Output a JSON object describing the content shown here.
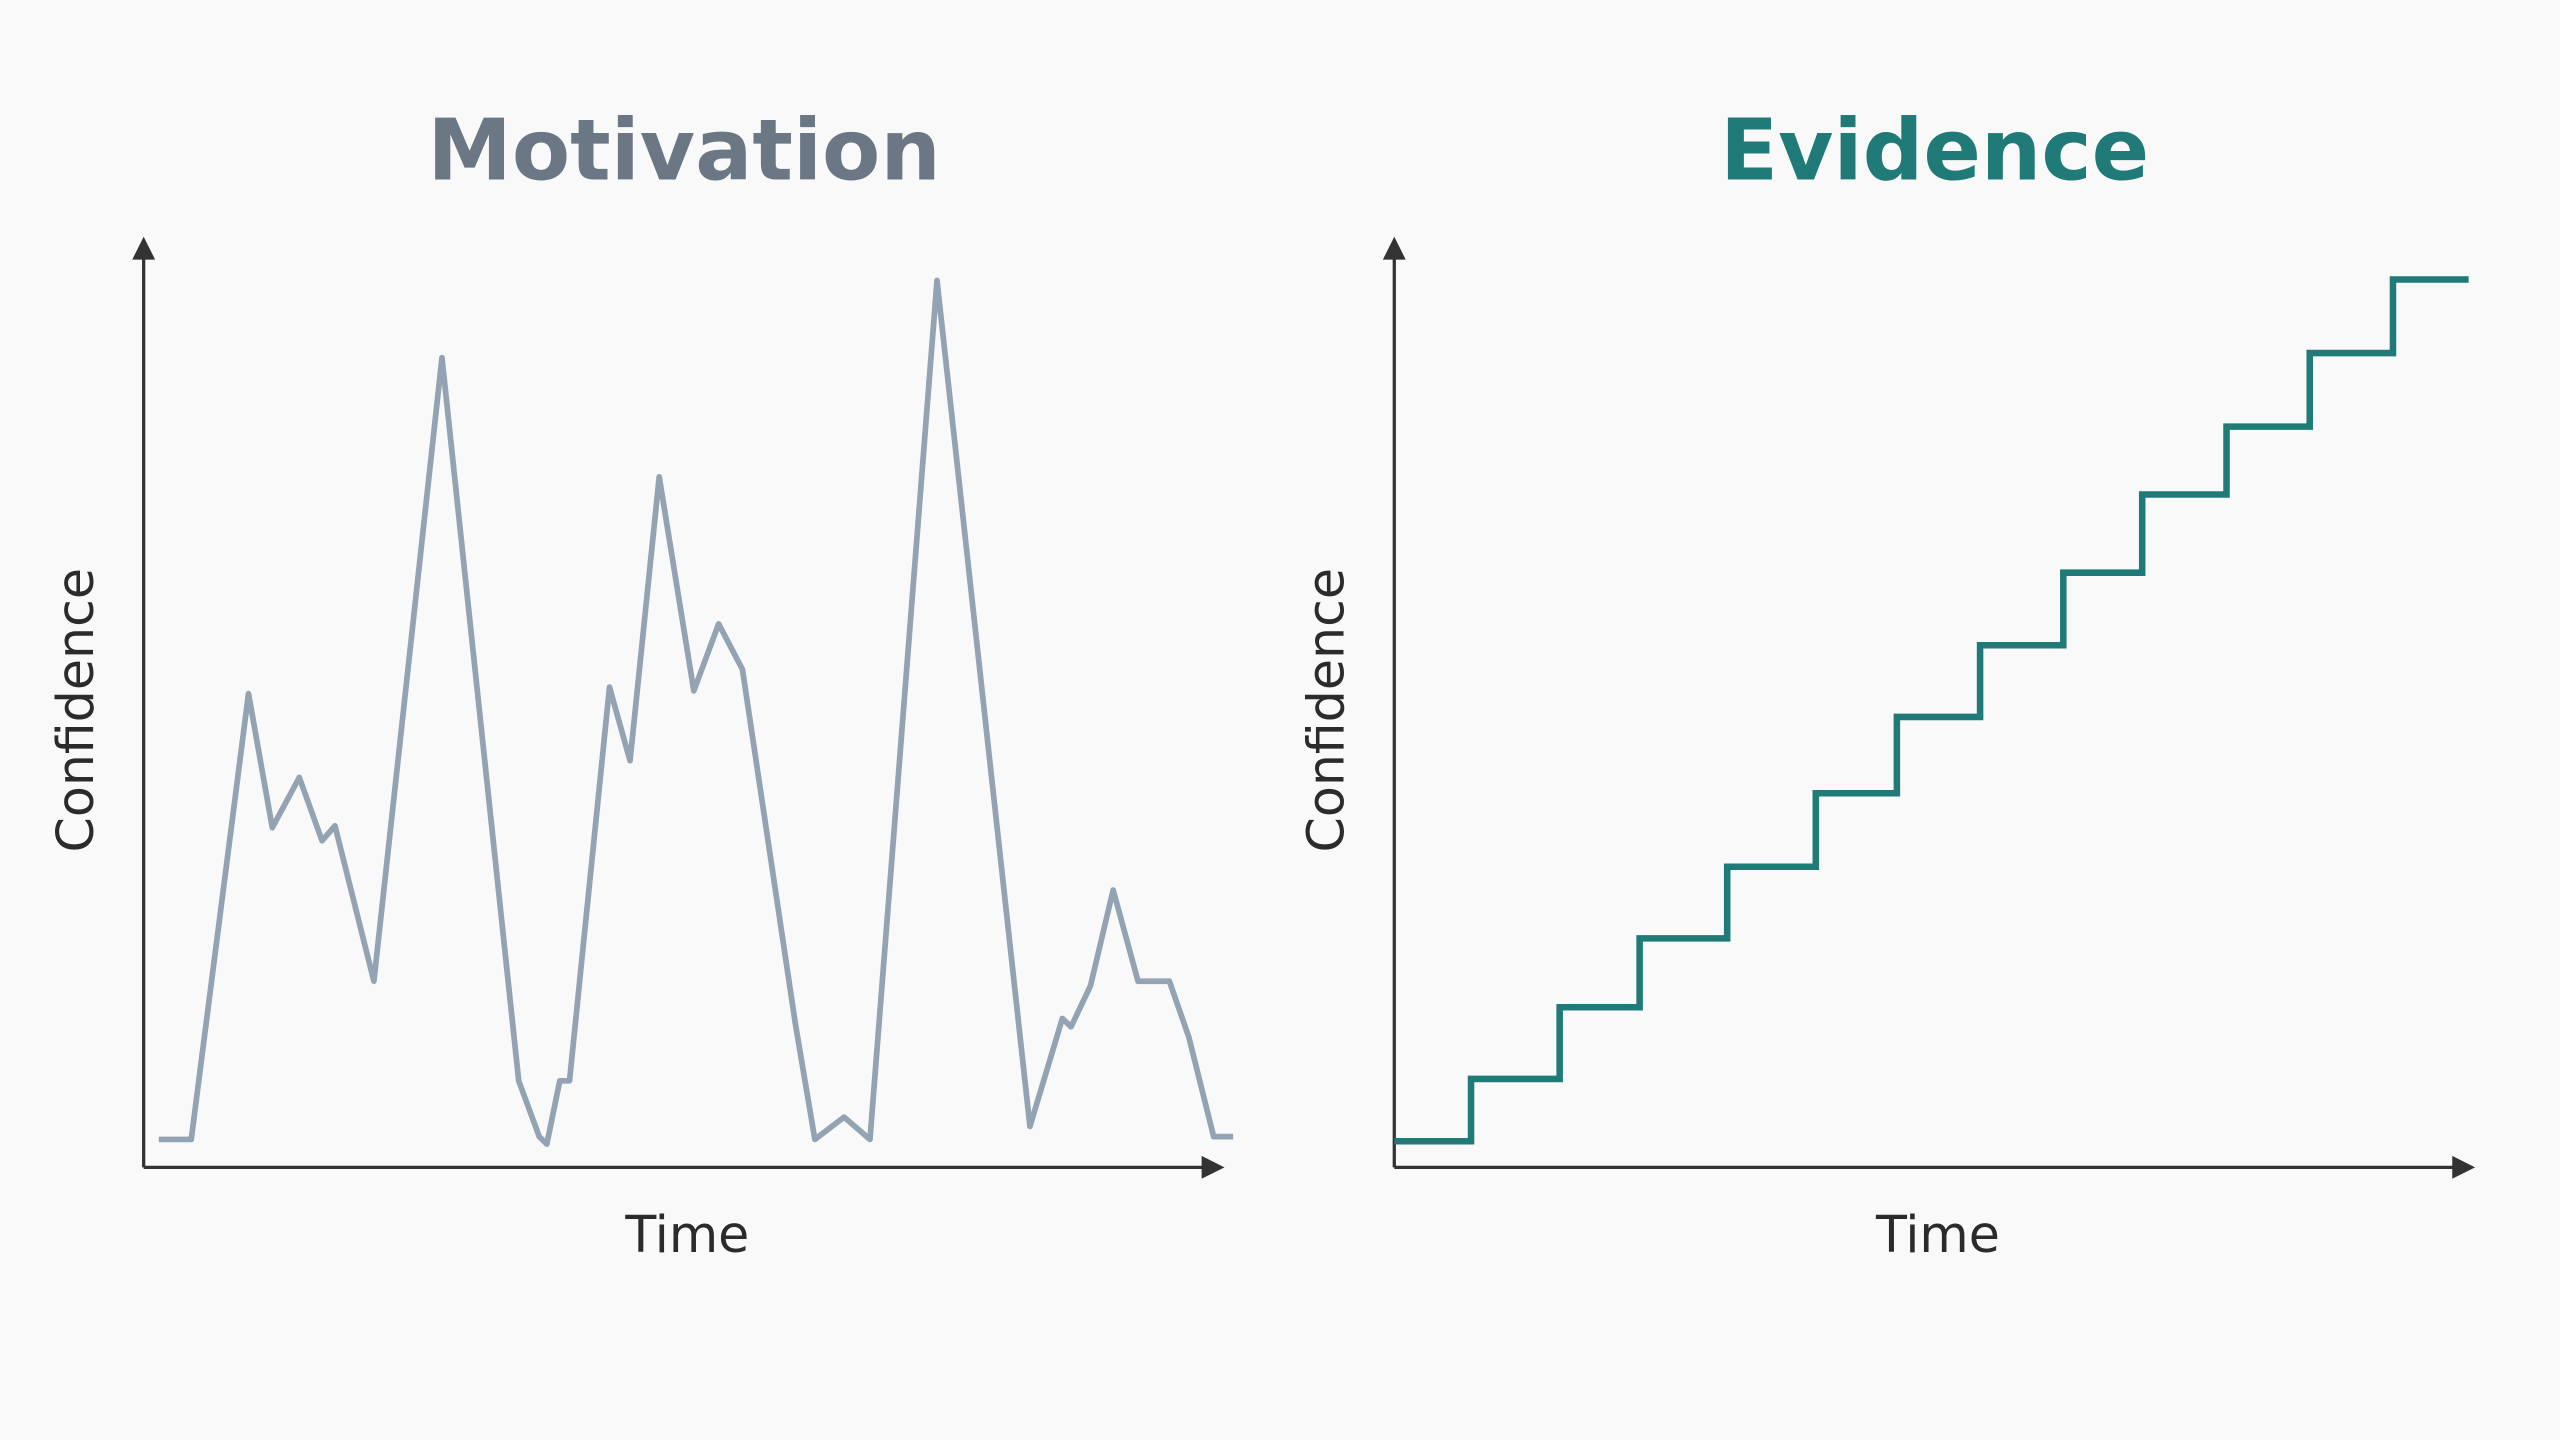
{
  "chart_data": [
    {
      "type": "line",
      "title": "Motivation",
      "title_color": "#6b7785",
      "x_label": "Time",
      "y_label": "Confidence",
      "color": "#94a3b3",
      "xlim": [
        0,
        100
      ],
      "ylim": [
        0,
        100
      ],
      "x": [
        1.4,
        4.4,
        9.7,
        11.9,
        14.4,
        16.5,
        17.7,
        21.3,
        27.6,
        34.7,
        36.6,
        37.3,
        38.5,
        39.4,
        43.1,
        45.0,
        47.7,
        50.9,
        53.2,
        55.4,
        60.3,
        62.1,
        64.8,
        67.2,
        73.4,
        82.0,
        85.0,
        85.8,
        87.6,
        89.7,
        92.0,
        94.9,
        96.7,
        99.0,
        100.8
      ],
      "values": [
        3.0,
        3.0,
        50.9,
        36.5,
        41.9,
        35.1,
        36.7,
        20.0,
        87.0,
        9.3,
        3.3,
        2.5,
        9.3,
        9.3,
        51.6,
        43.7,
        74.2,
        51.2,
        58.4,
        53.5,
        15.4,
        3.0,
        5.4,
        3.0,
        95.3,
        4.4,
        16.0,
        15.1,
        19.5,
        29.8,
        20.0,
        20.0,
        14.0,
        3.3,
        3.3
      ]
    },
    {
      "type": "step",
      "title": "Evidence",
      "title_color": "#1f7a78",
      "x_label": "Time",
      "y_label": "Confidence",
      "color": "#1f7a78",
      "xlim": [
        0,
        100
      ],
      "ylim": [
        0,
        100
      ],
      "x": [
        0,
        7.1,
        15.3,
        22.7,
        30.8,
        39.0,
        46.5,
        54.2,
        61.9,
        69.2,
        77.0,
        84.7,
        92.4,
        99.4
      ],
      "values": [
        2.8,
        9.5,
        17.2,
        24.6,
        32.3,
        40.2,
        48.4,
        56.1,
        63.9,
        72.3,
        79.6,
        87.5,
        95.4,
        95.4
      ]
    }
  ]
}
